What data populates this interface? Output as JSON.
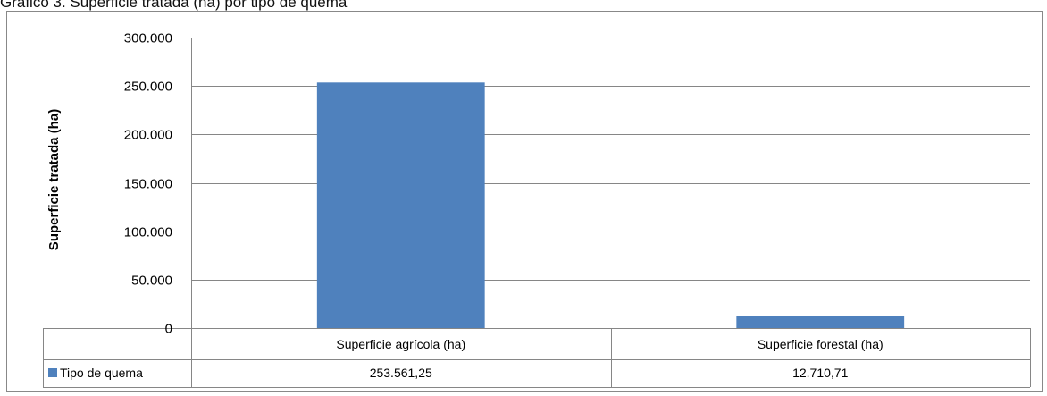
{
  "title": "Gráfico 3. Superficie tratada (ha) por tipo de quema",
  "chart_data": {
    "type": "bar",
    "ylabel": "Superficie tratada (ha)",
    "xlabel": "",
    "ylim": [
      0,
      300000
    ],
    "yticks": [
      0,
      50000,
      100000,
      150000,
      200000,
      250000,
      300000
    ],
    "ytick_labels": [
      "0",
      "50.000",
      "100.000",
      "150.000",
      "200.000",
      "250.000",
      "300.000"
    ],
    "categories": [
      "Superficie agrícola (ha)",
      "Superficie forestal (ha)"
    ],
    "series": [
      {
        "name": "Tipo de quema",
        "color": "#4f81bd",
        "values": [
          253561.25,
          12710.71
        ],
        "value_labels": [
          "253.561,25",
          "12.710,71"
        ]
      }
    ],
    "grid": true,
    "legend": "data table, left"
  }
}
